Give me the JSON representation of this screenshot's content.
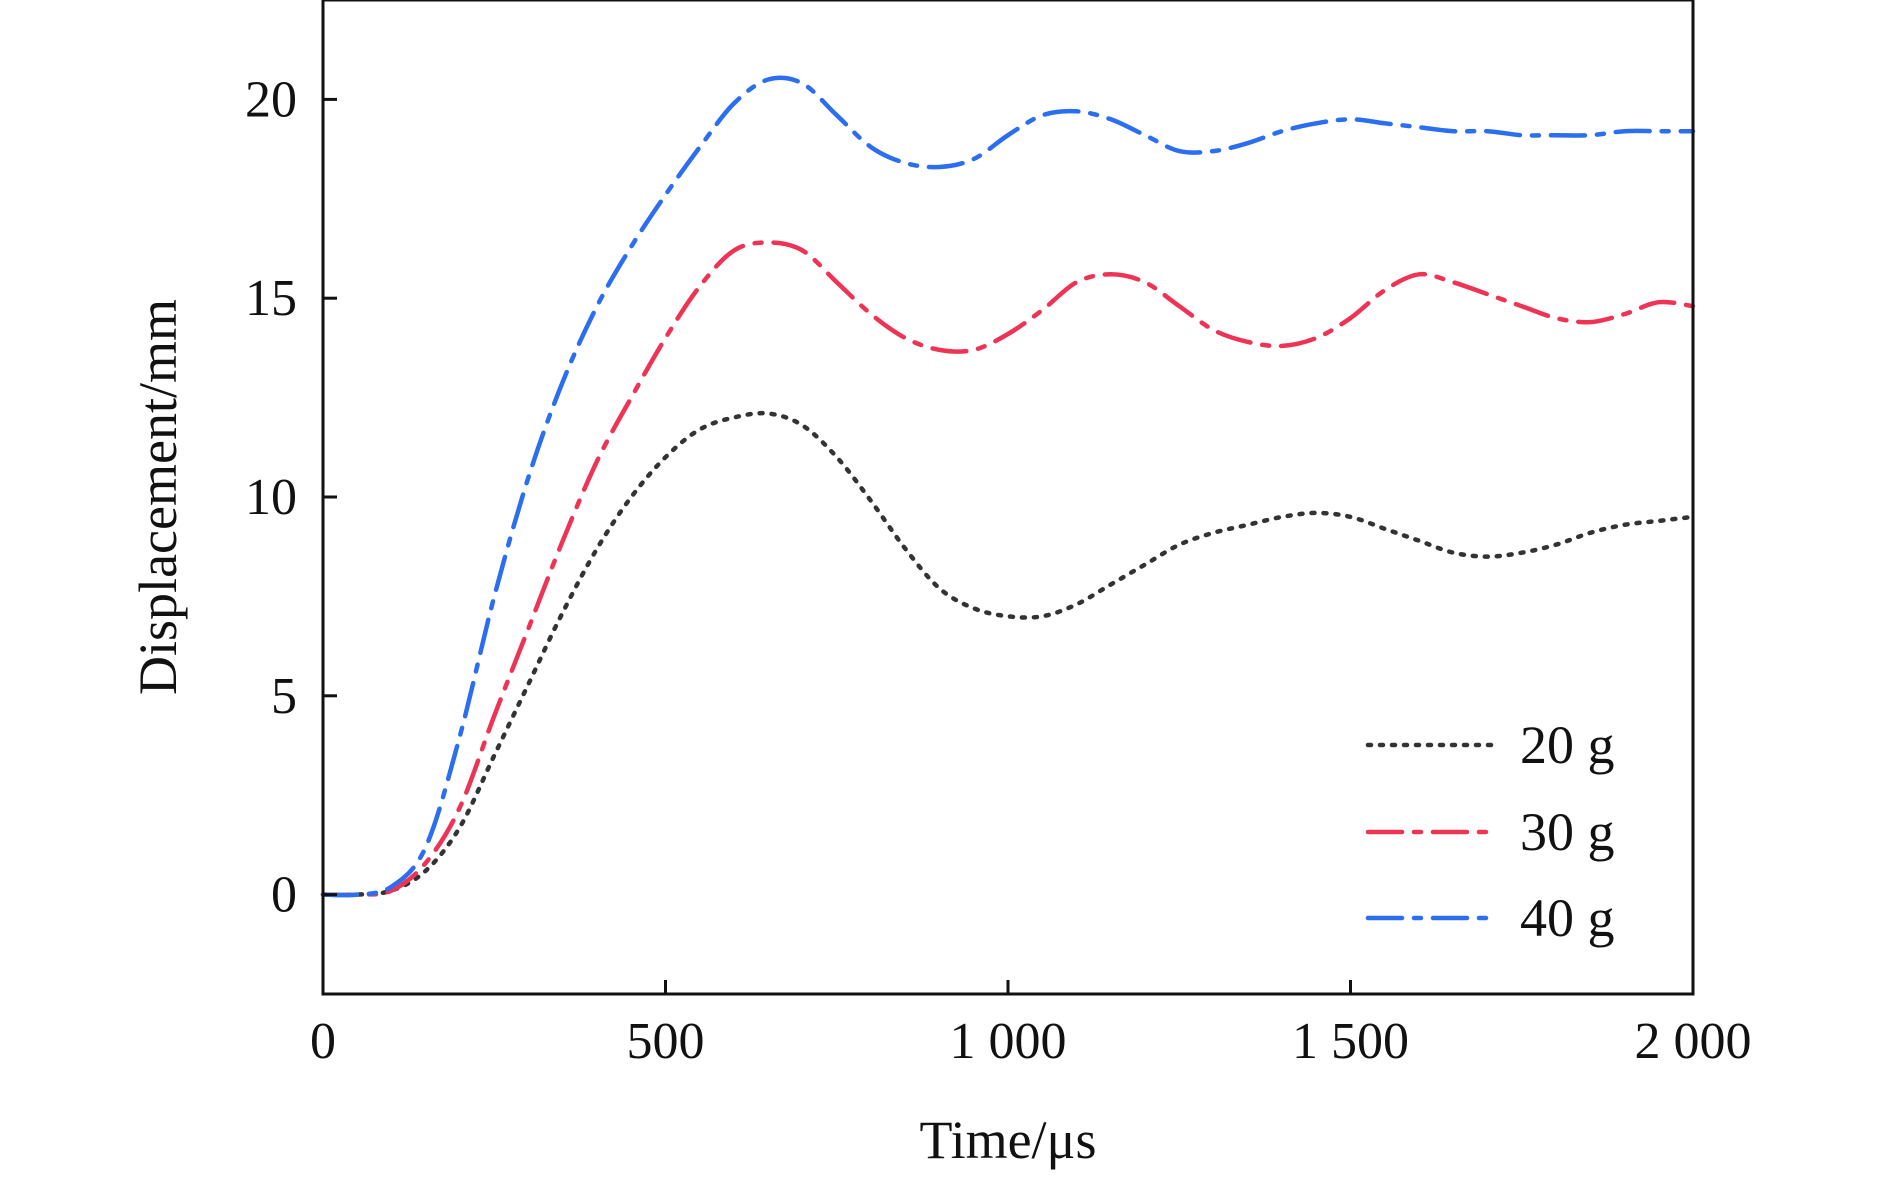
{
  "chart_data": {
    "type": "line",
    "title": "",
    "xlabel": "Time/μs",
    "ylabel": "Displacement/mm",
    "xlim": [
      0,
      2000
    ],
    "ylim": [
      -2.5,
      22.5
    ],
    "xticks": [
      0,
      500,
      1000,
      1500,
      2000
    ],
    "xtick_labels": [
      "0",
      "500",
      "1 000",
      "1 500",
      "2 000"
    ],
    "yticks": [
      0,
      5,
      10,
      15,
      20
    ],
    "ytick_labels": [
      "0",
      "5",
      "10",
      "15",
      "20"
    ],
    "grid": false,
    "legend_position": "bottom-right",
    "series": [
      {
        "name": "20 g",
        "color": "#333333",
        "dash": "dotted",
        "x": [
          0,
          50,
          100,
          150,
          200,
          250,
          300,
          350,
          400,
          450,
          500,
          550,
          600,
          650,
          700,
          750,
          800,
          850,
          900,
          950,
          1000,
          1050,
          1100,
          1150,
          1200,
          1250,
          1300,
          1350,
          1400,
          1450,
          1500,
          1550,
          1600,
          1650,
          1700,
          1750,
          1800,
          1850,
          1900,
          1950,
          2000
        ],
        "y": [
          0,
          0,
          0.1,
          0.6,
          1.7,
          3.5,
          5.3,
          7.1,
          8.7,
          10.0,
          11.0,
          11.7,
          12.0,
          12.1,
          11.8,
          11.0,
          9.9,
          8.7,
          7.7,
          7.2,
          7.0,
          7.0,
          7.3,
          7.8,
          8.3,
          8.8,
          9.1,
          9.3,
          9.5,
          9.6,
          9.5,
          9.2,
          8.9,
          8.6,
          8.5,
          8.6,
          8.8,
          9.1,
          9.3,
          9.4,
          9.5
        ]
      },
      {
        "name": "30 g",
        "color": "#ee3355",
        "dash": "dash-dot",
        "x": [
          0,
          50,
          100,
          150,
          200,
          250,
          300,
          350,
          400,
          450,
          500,
          550,
          600,
          650,
          700,
          750,
          800,
          850,
          900,
          950,
          1000,
          1050,
          1100,
          1150,
          1200,
          1250,
          1300,
          1350,
          1400,
          1450,
          1500,
          1550,
          1600,
          1650,
          1700,
          1750,
          1800,
          1850,
          1900,
          1950,
          2000
        ],
        "y": [
          0,
          0,
          0.1,
          0.8,
          2.2,
          4.5,
          6.7,
          8.9,
          10.9,
          12.5,
          14.0,
          15.3,
          16.2,
          16.4,
          16.2,
          15.4,
          14.6,
          14.0,
          13.7,
          13.7,
          14.1,
          14.7,
          15.4,
          15.6,
          15.4,
          14.8,
          14.2,
          13.9,
          13.8,
          14.0,
          14.5,
          15.2,
          15.6,
          15.4,
          15.1,
          14.8,
          14.5,
          14.4,
          14.6,
          14.9,
          14.8
        ]
      },
      {
        "name": "40 g",
        "color": "#2b6ef0",
        "dash": "dash-dot",
        "x": [
          0,
          50,
          100,
          150,
          200,
          250,
          300,
          350,
          400,
          450,
          500,
          550,
          600,
          650,
          700,
          750,
          800,
          850,
          900,
          950,
          1000,
          1050,
          1100,
          1150,
          1200,
          1250,
          1300,
          1350,
          1400,
          1450,
          1500,
          1550,
          1600,
          1650,
          1700,
          1750,
          1800,
          1850,
          1900,
          1950,
          2000
        ],
        "y": [
          0,
          0,
          0.2,
          1.2,
          4.0,
          7.5,
          10.5,
          12.9,
          14.8,
          16.3,
          17.6,
          18.8,
          19.9,
          20.5,
          20.4,
          19.6,
          18.8,
          18.4,
          18.3,
          18.5,
          19.1,
          19.6,
          19.7,
          19.5,
          19.1,
          18.7,
          18.7,
          18.9,
          19.2,
          19.4,
          19.5,
          19.4,
          19.3,
          19.2,
          19.2,
          19.1,
          19.1,
          19.1,
          19.2,
          19.2,
          19.2
        ]
      }
    ]
  }
}
